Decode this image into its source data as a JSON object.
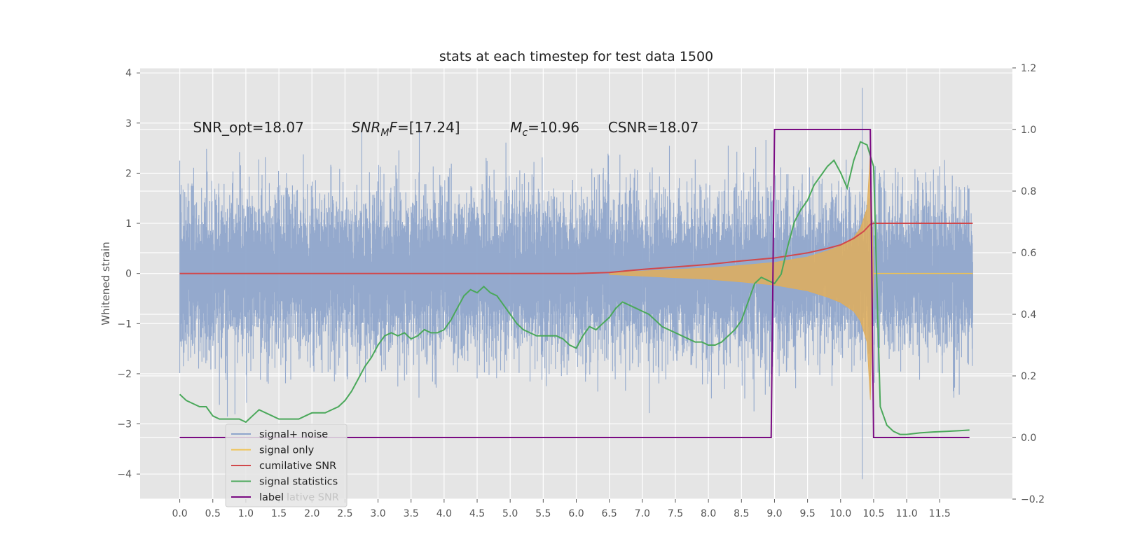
{
  "chart_data": {
    "type": "line",
    "title": "stats at each timestep for test data 1500",
    "xlabel": "",
    "ylabel": "Whitened strain",
    "xlim": [
      -0.6,
      12.6
    ],
    "ylim": [
      -4.5,
      4.1
    ],
    "y2lim": [
      -0.2,
      1.2
    ],
    "x_ticks": [
      "0.0",
      "0.5",
      "1.0",
      "1.5",
      "2.0",
      "2.5",
      "3.0",
      "3.5",
      "4.0",
      "4.5",
      "5.0",
      "5.5",
      "6.0",
      "6.5",
      "7.0",
      "7.5",
      "8.0",
      "8.5",
      "9.0",
      "9.5",
      "10.0",
      "10.5",
      "11.0",
      "11.5"
    ],
    "y_ticks": [
      "4",
      "3",
      "2",
      "1",
      "0",
      "−1",
      "−2",
      "−3",
      "−4"
    ],
    "y2_ticks": [
      "1.2",
      "1.0",
      "0.8",
      "0.6",
      "0.4",
      "0.2",
      "0.0",
      "−0.2"
    ],
    "grid": true,
    "annotations": [
      {
        "text": "SNR_opt=18.07",
        "x": 0.2,
        "y": 2.9
      },
      {
        "text_pre": "SNR",
        "text_sub": "M",
        "text_post": "F=[17.24]",
        "x": 2.6,
        "y": 2.9
      },
      {
        "text_pre": "M",
        "text_sub": "c",
        "text_post": "=10.96",
        "x": 5.0,
        "y": 2.9
      },
      {
        "text": "CSNR=18.07",
        "x": 6.48,
        "y": 2.9
      }
    ],
    "legend": {
      "placement": "lower-left",
      "entries": [
        {
          "label": "signal+ noise",
          "color": "#8fa5cb"
        },
        {
          "label": "signal only",
          "color": "#f0c24f"
        },
        {
          "label": "cumilative SNR",
          "color": "#d1484b"
        },
        {
          "label": "signal statistics",
          "color": "#4aa85a"
        },
        {
          "label": "label",
          "color": "#7a0a82"
        }
      ],
      "ghost_text": "lative SNR"
    },
    "series": [
      {
        "name": "signal+ noise",
        "axis": "left",
        "color": "#8fa5cb",
        "kind": "noise",
        "x_range": [
          0.0,
          12.0
        ],
        "typical_amplitude": [
          -2.0,
          2.2
        ],
        "extremes": [
          3.7,
          -4.1
        ]
      },
      {
        "name": "signal only",
        "axis": "left",
        "color": "#e0ae5a",
        "kind": "chirp",
        "x_range": [
          6.5,
          10.5
        ],
        "envelope_x": [
          6.5,
          7.0,
          7.5,
          8.0,
          8.5,
          9.0,
          9.5,
          9.8,
          10.0,
          10.2,
          10.3,
          10.4,
          10.45,
          10.5
        ],
        "envelope_y": [
          0.02,
          0.05,
          0.08,
          0.11,
          0.16,
          0.22,
          0.33,
          0.45,
          0.55,
          0.72,
          0.9,
          1.3,
          2.4,
          0.0
        ]
      },
      {
        "name": "cumilative SNR",
        "axis": "left",
        "color": "#d1484b",
        "x": [
          0.0,
          6.0,
          6.5,
          7.0,
          7.5,
          8.0,
          8.5,
          9.0,
          9.5,
          9.8,
          10.0,
          10.2,
          10.35,
          10.45,
          10.5,
          12.0
        ],
        "y": [
          0.0,
          0.0,
          0.02,
          0.08,
          0.13,
          0.18,
          0.25,
          0.31,
          0.41,
          0.5,
          0.57,
          0.7,
          0.84,
          0.98,
          1.0,
          1.0
        ]
      },
      {
        "name": "signal statistics",
        "axis": "right",
        "color": "#4aa85a",
        "x": [
          0.0,
          0.1,
          0.2,
          0.3,
          0.4,
          0.5,
          0.6,
          0.7,
          0.8,
          0.9,
          1.0,
          1.1,
          1.2,
          1.3,
          1.4,
          1.5,
          1.6,
          1.7,
          1.8,
          1.9,
          2.0,
          2.1,
          2.2,
          2.3,
          2.4,
          2.5,
          2.6,
          2.7,
          2.8,
          2.9,
          3.0,
          3.1,
          3.2,
          3.3,
          3.4,
          3.5,
          3.6,
          3.7,
          3.8,
          3.9,
          4.0,
          4.1,
          4.2,
          4.3,
          4.4,
          4.5,
          4.6,
          4.7,
          4.8,
          4.9,
          5.0,
          5.1,
          5.2,
          5.3,
          5.4,
          5.5,
          5.6,
          5.7,
          5.8,
          5.9,
          6.0,
          6.1,
          6.2,
          6.3,
          6.4,
          6.5,
          6.6,
          6.7,
          6.8,
          6.9,
          7.0,
          7.1,
          7.2,
          7.3,
          7.4,
          7.5,
          7.6,
          7.7,
          7.8,
          7.9,
          8.0,
          8.1,
          8.2,
          8.3,
          8.4,
          8.5,
          8.6,
          8.7,
          8.8,
          8.9,
          9.0,
          9.1,
          9.2,
          9.3,
          9.4,
          9.5,
          9.6,
          9.7,
          9.8,
          9.9,
          10.0,
          10.1,
          10.2,
          10.3,
          10.4,
          10.5,
          10.6,
          10.7,
          10.8,
          10.9,
          11.0,
          11.2,
          11.4,
          11.6,
          11.8,
          11.95
        ],
        "y": [
          0.14,
          0.12,
          0.11,
          0.1,
          0.1,
          0.07,
          0.06,
          0.06,
          0.06,
          0.06,
          0.05,
          0.07,
          0.09,
          0.08,
          0.07,
          0.06,
          0.06,
          0.06,
          0.06,
          0.07,
          0.08,
          0.08,
          0.08,
          0.09,
          0.1,
          0.12,
          0.15,
          0.19,
          0.23,
          0.26,
          0.3,
          0.33,
          0.34,
          0.33,
          0.34,
          0.32,
          0.33,
          0.35,
          0.34,
          0.34,
          0.35,
          0.38,
          0.42,
          0.46,
          0.48,
          0.47,
          0.49,
          0.47,
          0.46,
          0.43,
          0.4,
          0.37,
          0.35,
          0.34,
          0.33,
          0.33,
          0.33,
          0.33,
          0.32,
          0.3,
          0.29,
          0.33,
          0.36,
          0.35,
          0.37,
          0.39,
          0.42,
          0.44,
          0.43,
          0.42,
          0.41,
          0.4,
          0.38,
          0.36,
          0.35,
          0.34,
          0.33,
          0.32,
          0.31,
          0.31,
          0.3,
          0.3,
          0.31,
          0.33,
          0.35,
          0.38,
          0.44,
          0.5,
          0.52,
          0.51,
          0.5,
          0.53,
          0.62,
          0.7,
          0.74,
          0.77,
          0.82,
          0.85,
          0.88,
          0.9,
          0.86,
          0.81,
          0.9,
          0.96,
          0.95,
          0.88,
          0.1,
          0.04,
          0.02,
          0.01,
          0.01,
          0.015,
          0.018,
          0.02,
          0.022,
          0.024
        ]
      },
      {
        "name": "label",
        "axis": "right",
        "color": "#7a0a82",
        "x": [
          0.0,
          8.95,
          9.0,
          10.45,
          10.5,
          11.95
        ],
        "y": [
          0.0,
          0.0,
          1.0,
          1.0,
          0.0,
          0.0
        ]
      }
    ]
  }
}
